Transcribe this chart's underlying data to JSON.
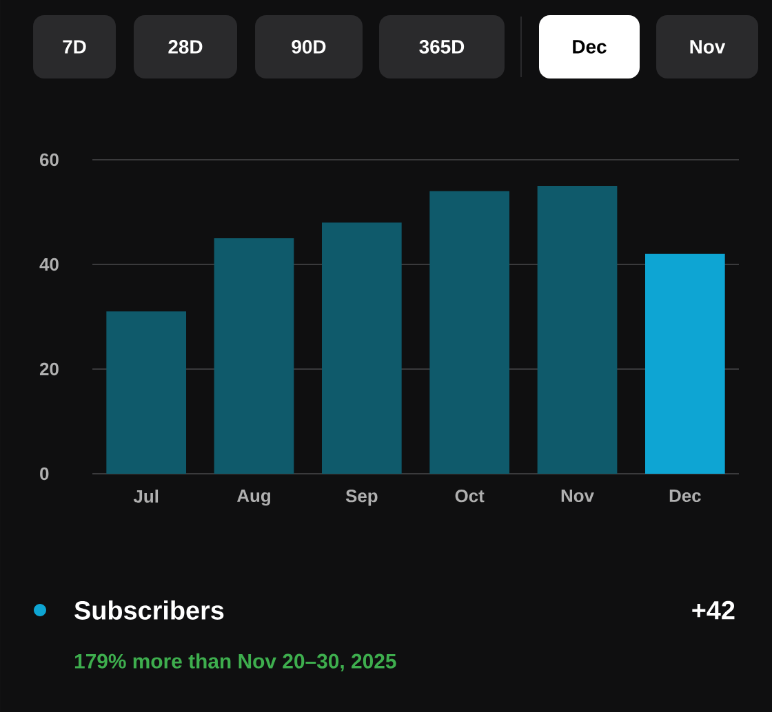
{
  "chart_data": {
    "type": "bar",
    "categories": [
      "Jul",
      "Aug",
      "Sep",
      "Oct",
      "Nov",
      "Dec"
    ],
    "series": [
      {
        "name": "Subscribers",
        "color": "#0ea5d3",
        "colors": [
          "#0f5a6b",
          "#0f5a6b",
          "#0f5a6b",
          "#0f5a6b",
          "#0f5a6b",
          "#0ea5d3"
        ],
        "values": [
          31,
          45,
          48,
          54,
          55,
          42
        ]
      }
    ],
    "ylim": [
      0,
      60
    ],
    "yticks": [
      0,
      20,
      40,
      60
    ],
    "grid": "y",
    "legend": "bottom left",
    "annotations": [
      "7D",
      "28D",
      "90D",
      "365D",
      "Dec",
      "Nov",
      "+42",
      "179% more than Nov 20–30, 2025"
    ]
  }
}
